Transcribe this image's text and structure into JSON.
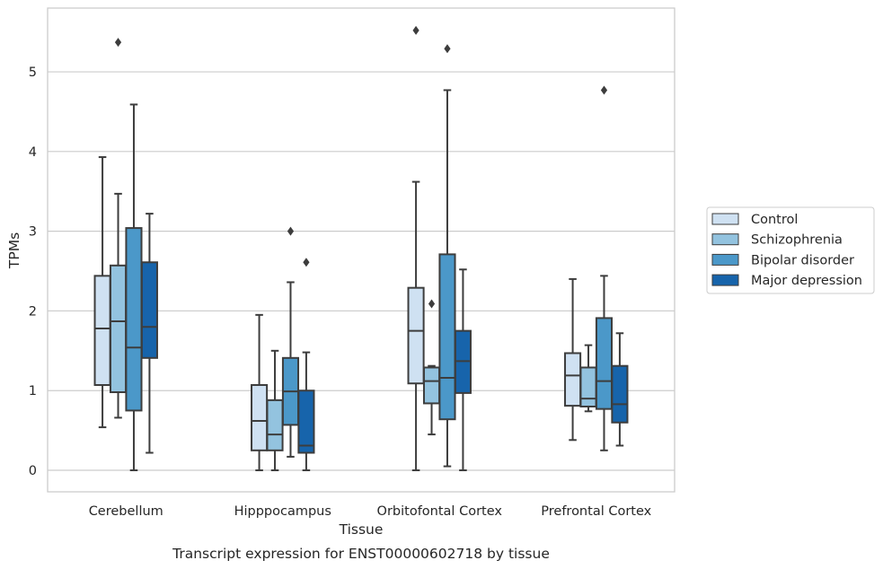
{
  "chart_data": {
    "type": "box",
    "caption": "Transcript expression for ENST00000602718 by tissue",
    "xlabel": "Tissue",
    "ylabel": "TPMs",
    "ylim": [
      -0.27,
      5.8
    ],
    "yticks": [
      0,
      1,
      2,
      3,
      4,
      5
    ],
    "grid": "horizontal",
    "legend_position": "right",
    "categories": [
      "Cerebellum",
      "Hipppocampus",
      "Orbitofontal Cortex",
      "Prefrontal Cortex"
    ],
    "series": [
      {
        "name": "Control",
        "color": "#cfe1f2",
        "boxes": [
          {
            "whislo": 0.54,
            "q1": 1.07,
            "med": 1.78,
            "q3": 2.44,
            "whishi": 3.93,
            "fliers": []
          },
          {
            "whislo": 0.0,
            "q1": 0.25,
            "med": 0.62,
            "q3": 1.07,
            "whishi": 1.95,
            "fliers": []
          },
          {
            "whislo": 0.0,
            "q1": 1.09,
            "med": 1.75,
            "q3": 2.29,
            "whishi": 3.62,
            "fliers": [
              5.52
            ]
          },
          {
            "whislo": 0.38,
            "q1": 0.81,
            "med": 1.19,
            "q3": 1.47,
            "whishi": 2.4,
            "fliers": []
          }
        ]
      },
      {
        "name": "Schizophrenia",
        "color": "#93c3df",
        "boxes": [
          {
            "whislo": 0.66,
            "q1": 0.98,
            "med": 1.87,
            "q3": 2.57,
            "whishi": 3.47,
            "fliers": [
              5.37
            ]
          },
          {
            "whislo": 0.0,
            "q1": 0.25,
            "med": 0.45,
            "q3": 0.88,
            "whishi": 1.5,
            "fliers": []
          },
          {
            "whislo": 0.45,
            "q1": 0.84,
            "med": 1.12,
            "q3": 1.29,
            "whishi": 1.31,
            "fliers": [
              2.09
            ]
          },
          {
            "whislo": 0.74,
            "q1": 0.8,
            "med": 0.9,
            "q3": 1.29,
            "whishi": 1.57,
            "fliers": []
          }
        ]
      },
      {
        "name": "Bipolar disorder",
        "color": "#4b98c9",
        "boxes": [
          {
            "whislo": 0.0,
            "q1": 0.75,
            "med": 1.54,
            "q3": 3.04,
            "whishi": 4.59,
            "fliers": []
          },
          {
            "whislo": 0.17,
            "q1": 0.57,
            "med": 0.99,
            "q3": 1.41,
            "whishi": 2.36,
            "fliers": [
              3.0
            ]
          },
          {
            "whislo": 0.05,
            "q1": 0.64,
            "med": 1.16,
            "q3": 2.71,
            "whishi": 4.77,
            "fliers": [
              5.29
            ]
          },
          {
            "whislo": 0.25,
            "q1": 0.77,
            "med": 1.12,
            "q3": 1.91,
            "whishi": 2.44,
            "fliers": [
              4.77
            ]
          }
        ]
      },
      {
        "name": "Major depression",
        "color": "#1764ab",
        "boxes": [
          {
            "whislo": 0.22,
            "q1": 1.41,
            "med": 1.8,
            "q3": 2.61,
            "whishi": 3.22,
            "fliers": []
          },
          {
            "whislo": 0.0,
            "q1": 0.22,
            "med": 0.31,
            "q3": 1.0,
            "whishi": 1.48,
            "fliers": [
              2.61
            ]
          },
          {
            "whislo": 0.0,
            "q1": 0.97,
            "med": 1.37,
            "q3": 1.75,
            "whishi": 2.52,
            "fliers": []
          },
          {
            "whislo": 0.31,
            "q1": 0.6,
            "med": 0.83,
            "q3": 1.31,
            "whishi": 1.72,
            "fliers": []
          }
        ]
      }
    ]
  }
}
